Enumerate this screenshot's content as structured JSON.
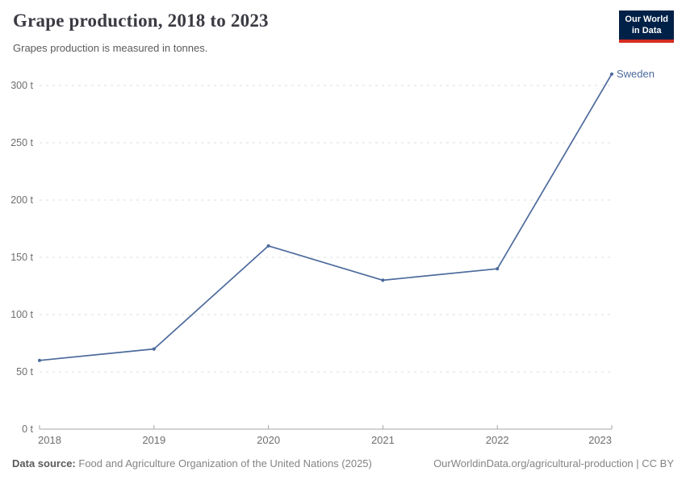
{
  "header": {
    "title": "Grape production, 2018 to 2023",
    "subtitle": "Grapes production is measured in tonnes.",
    "logo": {
      "line1": "Our World",
      "line2": "in Data"
    }
  },
  "chart_data": {
    "type": "line",
    "title": "Grape production, 2018 to 2023",
    "subtitle": "Grapes production is measured in tonnes.",
    "x": [
      "2018",
      "2019",
      "2020",
      "2021",
      "2022",
      "2023"
    ],
    "series": [
      {
        "name": "Sweden",
        "values": [
          60,
          70,
          160,
          130,
          140,
          310
        ],
        "color": "#4C6A9C",
        "unit": "t"
      }
    ],
    "ylim": [
      0,
      300
    ],
    "yticks": [
      0,
      50,
      100,
      150,
      200,
      250,
      300
    ],
    "ytick_labels": [
      "0 t",
      "50 t",
      "100 t",
      "150 t",
      "200 t",
      "250 t",
      "300 t"
    ],
    "xtick_labels": [
      "2018",
      "2019",
      "2020",
      "2021",
      "2022",
      "2023"
    ],
    "grid": "horizontal-dashed",
    "legend_position": "end-of-line"
  },
  "footer": {
    "source_label": "Data source:",
    "source_text": "Food and Agriculture Organization of the United Nations (2025)",
    "attribution": "OurWorldinData.org/agricultural-production | CC BY"
  },
  "colors": {
    "series_blue": "#4C6A9C",
    "logo_navy": "#002147",
    "logo_red": "#D42B1F",
    "gridline": "#DCDCDC",
    "axis": "#A5A5A5",
    "tick_label": "#6E6E6E",
    "title_text": "#3A3A43",
    "subtitle_text": "#5B5B5B",
    "footer_text": "#848484"
  }
}
